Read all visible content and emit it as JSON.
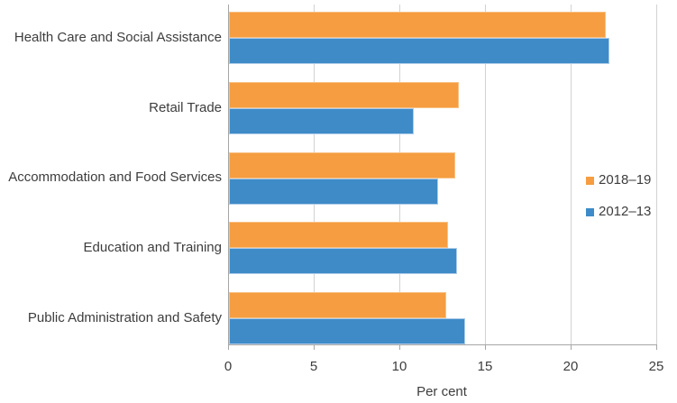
{
  "chart_data": {
    "type": "bar",
    "orientation": "horizontal",
    "categories": [
      "Health Care and Social Assistance",
      "Retail Trade",
      "Accommodation and Food Services",
      "Education and Training",
      "Public Administration and Safety"
    ],
    "series": [
      {
        "name": "2018–19",
        "color": "#F59D40",
        "border_color": "#F8C183",
        "values": [
          22.0,
          13.4,
          13.2,
          12.8,
          12.7
        ]
      },
      {
        "name": "2012–13",
        "color": "#3E8BC8",
        "border_color": "#AECBE8",
        "values": [
          22.2,
          10.8,
          12.2,
          13.3,
          13.8
        ]
      }
    ],
    "xlabel": "Per cent",
    "xlim": [
      0,
      25
    ],
    "xticks": [
      0,
      5,
      10,
      15,
      20,
      25
    ],
    "grid": true,
    "legend_position": "right"
  }
}
